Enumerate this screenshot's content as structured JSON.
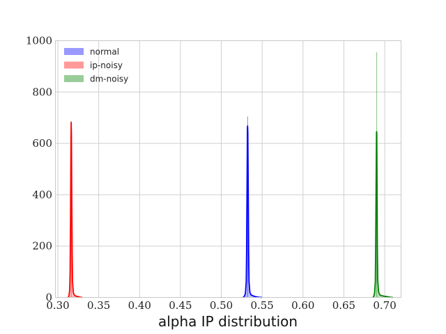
{
  "chart_data": {
    "type": "area",
    "title": "",
    "xlabel": "alpha IP distribution",
    "ylabel": "",
    "xlim": [
      0.297,
      0.72
    ],
    "ylim": [
      0,
      1000
    ],
    "grid": true,
    "legend_position": "top-left",
    "xticks": [
      0.3,
      0.35,
      0.4,
      0.45,
      0.5,
      0.55,
      0.6,
      0.65,
      0.7
    ],
    "xtick_labels": [
      "0.30",
      "0.35",
      "0.40",
      "0.45",
      "0.50",
      "0.55",
      "0.60",
      "0.65",
      "0.70"
    ],
    "yticks": [
      0,
      200,
      400,
      600,
      800,
      1000
    ],
    "ytick_labels": [
      "0",
      "200",
      "400",
      "600",
      "800",
      "1000"
    ],
    "series": [
      {
        "name": "normal",
        "color": "#0000ff",
        "legend_color": "#9999ff",
        "kde": [
          [
            0.5265,
            0
          ],
          [
            0.528,
            3
          ],
          [
            0.5295,
            15
          ],
          [
            0.5305,
            60
          ],
          [
            0.531,
            180
          ],
          [
            0.5315,
            420
          ],
          [
            0.532,
            660
          ],
          [
            0.5322,
            668
          ],
          [
            0.5325,
            640
          ],
          [
            0.533,
            430
          ],
          [
            0.5335,
            180
          ],
          [
            0.534,
            60
          ],
          [
            0.535,
            20
          ],
          [
            0.5365,
            10
          ],
          [
            0.539,
            6
          ],
          [
            0.542,
            3
          ],
          [
            0.546,
            1
          ],
          [
            0.55,
            0
          ]
        ],
        "hist_spike": {
          "x": 0.5322,
          "y": 705
        }
      },
      {
        "name": "ip-noisy",
        "color": "#ff0000",
        "legend_color": "#ff9999",
        "kde": [
          [
            0.3125,
            0
          ],
          [
            0.3135,
            5
          ],
          [
            0.3145,
            30
          ],
          [
            0.315,
            100
          ],
          [
            0.3155,
            300
          ],
          [
            0.316,
            580
          ],
          [
            0.3163,
            683
          ],
          [
            0.3166,
            640
          ],
          [
            0.317,
            420
          ],
          [
            0.3175,
            180
          ],
          [
            0.318,
            60
          ],
          [
            0.319,
            18
          ],
          [
            0.3205,
            8
          ],
          [
            0.3225,
            5
          ],
          [
            0.325,
            3
          ],
          [
            0.328,
            1
          ],
          [
            0.33,
            0
          ]
        ],
        "hist_spike": {
          "x": 0.3163,
          "y": 683
        }
      },
      {
        "name": "dm-noisy",
        "color": "#008000",
        "legend_color": "#99cc99",
        "kde": [
          [
            0.6855,
            0
          ],
          [
            0.6865,
            4
          ],
          [
            0.6875,
            15
          ],
          [
            0.6885,
            60
          ],
          [
            0.689,
            200
          ],
          [
            0.6895,
            450
          ],
          [
            0.69,
            646
          ],
          [
            0.6903,
            640
          ],
          [
            0.6906,
            460
          ],
          [
            0.691,
            200
          ],
          [
            0.6915,
            70
          ],
          [
            0.6925,
            22
          ],
          [
            0.694,
            10
          ],
          [
            0.696,
            7
          ],
          [
            0.699,
            5
          ],
          [
            0.703,
            3
          ],
          [
            0.707,
            1
          ],
          [
            0.71,
            0
          ]
        ],
        "hist_spike": {
          "x": 0.6903,
          "y": 955
        }
      }
    ]
  }
}
